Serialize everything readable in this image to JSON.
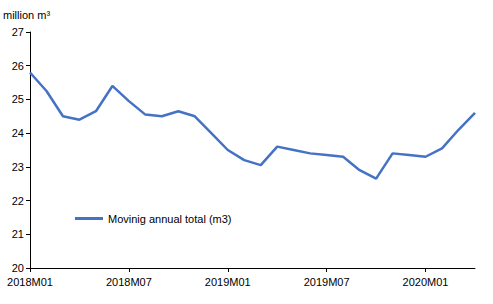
{
  "chart_data": {
    "type": "line",
    "ylabel": "million m³",
    "categories": [
      "2018M01",
      null,
      null,
      null,
      null,
      null,
      "2018M07",
      null,
      null,
      null,
      null,
      null,
      "2019M01",
      null,
      null,
      null,
      null,
      null,
      "2019M07",
      null,
      null,
      null,
      null,
      null,
      "2020M01",
      null,
      null,
      null
    ],
    "series": [
      {
        "name": "Movinig annual total (m3)",
        "color": "#4472c4",
        "values": [
          25.8,
          25.25,
          24.5,
          24.4,
          24.65,
          25.4,
          24.95,
          24.55,
          24.5,
          24.65,
          24.5,
          24.0,
          23.5,
          23.2,
          23.05,
          23.6,
          23.5,
          23.4,
          23.35,
          23.3,
          22.9,
          22.65,
          23.4,
          23.35,
          23.3,
          23.55,
          24.1,
          24.6
        ]
      }
    ],
    "ylim": [
      20,
      27
    ],
    "yticks": [
      20,
      21,
      22,
      23,
      24,
      25,
      26,
      27
    ],
    "grid": false,
    "legend": "lower left"
  }
}
